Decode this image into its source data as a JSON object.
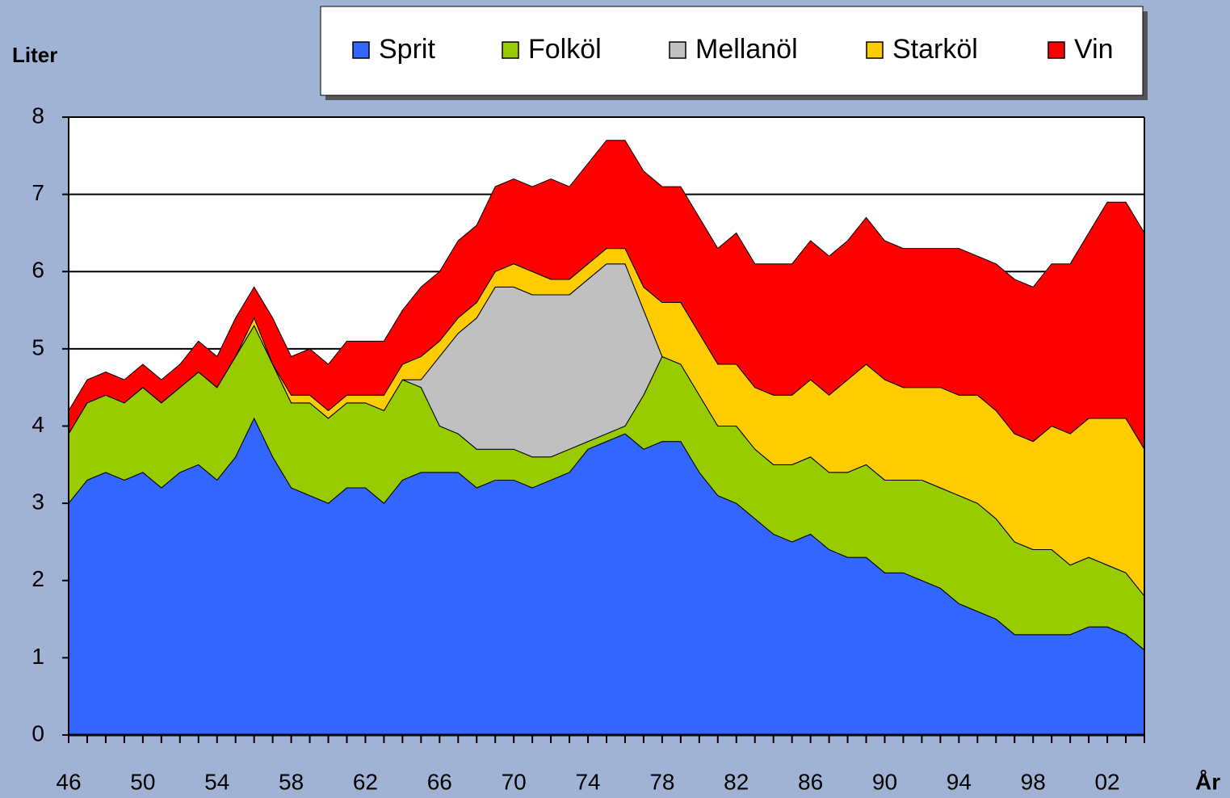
{
  "chart_data": {
    "type": "area",
    "stacked": true,
    "y_label": "Liter",
    "x_label": "År",
    "categories": [
      "46",
      null,
      null,
      null,
      "50",
      null,
      null,
      null,
      "54",
      null,
      null,
      null,
      "58",
      null,
      null,
      null,
      "62",
      null,
      null,
      null,
      "66",
      null,
      null,
      null,
      "70",
      null,
      null,
      null,
      "74",
      null,
      null,
      null,
      "78",
      null,
      null,
      null,
      "82",
      null,
      null,
      null,
      "86",
      null,
      null,
      null,
      "90",
      null,
      null,
      null,
      "94",
      null,
      null,
      null,
      "98",
      null,
      null,
      null,
      "02",
      null,
      null
    ],
    "ylim": [
      0,
      8
    ],
    "yticks": [
      0,
      1,
      2,
      3,
      4,
      5,
      6,
      7,
      8
    ],
    "grid": true,
    "legend": "top",
    "series": [
      {
        "name": "Sprit",
        "color": "#3366ff",
        "values": [
          3.0,
          3.3,
          3.4,
          3.3,
          3.4,
          3.2,
          3.4,
          3.5,
          3.3,
          3.6,
          4.1,
          3.6,
          3.2,
          3.1,
          3.0,
          3.2,
          3.2,
          3.0,
          3.3,
          3.4,
          3.4,
          3.4,
          3.2,
          3.3,
          3.3,
          3.2,
          3.3,
          3.4,
          3.7,
          3.8,
          3.9,
          3.7,
          3.8,
          3.8,
          3.4,
          3.1,
          3.0,
          2.8,
          2.6,
          2.5,
          2.6,
          2.4,
          2.3,
          2.3,
          2.1,
          2.1,
          2.0,
          1.9,
          1.7,
          1.6,
          1.5,
          1.3,
          1.3,
          1.3,
          1.3,
          1.4,
          1.4,
          1.3,
          1.1
        ]
      },
      {
        "name": "Folköl",
        "color": "#99cc00",
        "values": [
          0.9,
          1.0,
          1.0,
          1.0,
          1.1,
          1.1,
          1.1,
          1.2,
          1.2,
          1.3,
          1.2,
          1.2,
          1.1,
          1.2,
          1.1,
          1.1,
          1.1,
          1.2,
          1.3,
          1.1,
          0.6,
          0.5,
          0.5,
          0.4,
          0.4,
          0.4,
          0.3,
          0.3,
          0.1,
          0.1,
          0.1,
          0.7,
          1.1,
          1.0,
          1.0,
          0.9,
          1.0,
          0.9,
          0.9,
          1.0,
          1.0,
          1.0,
          1.1,
          1.2,
          1.2,
          1.2,
          1.3,
          1.3,
          1.4,
          1.4,
          1.3,
          1.2,
          1.1,
          1.1,
          0.9,
          0.9,
          0.8,
          0.8,
          0.7
        ]
      },
      {
        "name": "Mellanöl",
        "color": "#c0c0c0",
        "values": [
          0,
          0,
          0,
          0,
          0,
          0,
          0,
          0,
          0,
          0,
          0,
          0,
          0,
          0,
          0,
          0,
          0,
          0,
          0,
          0.1,
          0.9,
          1.3,
          1.7,
          2.1,
          2.1,
          2.1,
          2.1,
          2.0,
          2.1,
          2.2,
          2.1,
          1.1,
          0,
          0,
          0,
          0,
          0,
          0,
          0,
          0,
          0,
          0,
          0,
          0,
          0,
          0,
          0,
          0,
          0,
          0,
          0,
          0,
          0,
          0,
          0,
          0,
          0,
          0,
          0
        ]
      },
      {
        "name": "Starköl",
        "color": "#ffcc00",
        "values": [
          0,
          0,
          0,
          0,
          0,
          0,
          0,
          0,
          0,
          0,
          0.1,
          0,
          0.1,
          0.1,
          0.1,
          0.1,
          0.1,
          0.2,
          0.2,
          0.3,
          0.2,
          0.2,
          0.2,
          0.2,
          0.3,
          0.3,
          0.2,
          0.2,
          0.2,
          0.2,
          0.2,
          0.3,
          0.7,
          0.8,
          0.8,
          0.8,
          0.8,
          0.8,
          0.9,
          0.9,
          1.0,
          1.0,
          1.2,
          1.3,
          1.3,
          1.2,
          1.2,
          1.3,
          1.3,
          1.4,
          1.4,
          1.4,
          1.4,
          1.6,
          1.7,
          1.8,
          1.9,
          2.0,
          1.9
        ]
      },
      {
        "name": "Vin",
        "color": "#ff0000",
        "values": [
          0.3,
          0.3,
          0.3,
          0.3,
          0.3,
          0.3,
          0.3,
          0.4,
          0.4,
          0.5,
          0.4,
          0.6,
          0.5,
          0.6,
          0.6,
          0.7,
          0.7,
          0.7,
          0.7,
          0.9,
          0.9,
          1.0,
          1.0,
          1.1,
          1.1,
          1.1,
          1.3,
          1.2,
          1.3,
          1.4,
          1.4,
          1.5,
          1.5,
          1.5,
          1.5,
          1.5,
          1.7,
          1.6,
          1.7,
          1.7,
          1.8,
          1.8,
          1.8,
          1.9,
          1.8,
          1.8,
          1.8,
          1.8,
          1.9,
          1.8,
          1.9,
          2.0,
          2.0,
          2.1,
          2.2,
          2.4,
          2.8,
          2.8,
          2.8
        ]
      }
    ]
  }
}
